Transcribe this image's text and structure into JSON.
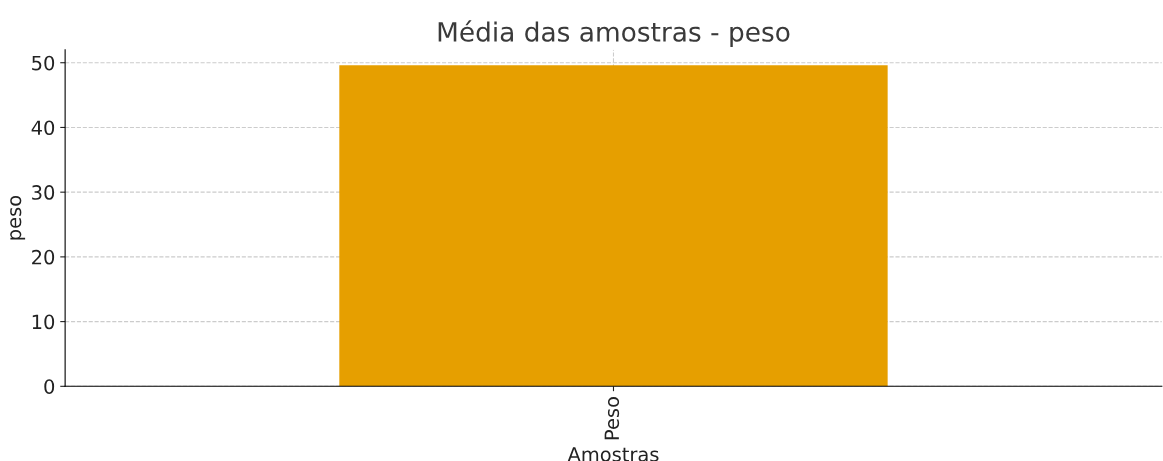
{
  "chart_data": {
    "type": "bar",
    "title": "Média das amostras - peso",
    "xlabel": "Amostras",
    "ylabel": "peso",
    "categories": [
      "Peso"
    ],
    "series": [
      {
        "color": "#e69f00",
        "values": [
          49.6
        ]
      }
    ],
    "ylim": [
      0,
      52
    ],
    "yticks": [
      0,
      10,
      20,
      30,
      40,
      50
    ],
    "grid": true
  }
}
